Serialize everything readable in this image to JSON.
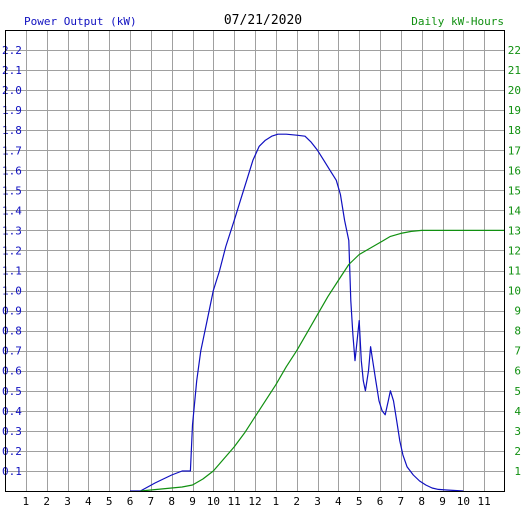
{
  "header": {
    "left_title": "Power Output (kW)",
    "date": "07/21/2020",
    "right_title": "Daily kW-Hours"
  },
  "colors": {
    "power": "#1010c0",
    "energy": "#109010",
    "grid": "#a0a0a0",
    "axis": "#000000",
    "date_text": "#000000"
  },
  "chart_data": {
    "type": "line",
    "x_tick_labels": [
      "1",
      "2",
      "3",
      "4",
      "5",
      "6",
      "7",
      "8",
      "9",
      "10",
      "11",
      "12",
      "1",
      "2",
      "3",
      "4",
      "5",
      "6",
      "7",
      "8",
      "9",
      "10",
      "11"
    ],
    "x_unit": "hour of day",
    "xlim": [
      0,
      24
    ],
    "left_axis": {
      "label": "Power Output (kW)",
      "ylim": [
        0,
        2.3
      ],
      "ticks": [
        "0.1",
        "0.2",
        "0.3",
        "0.4",
        "0.5",
        "0.6",
        "0.7",
        "0.8",
        "0.9",
        "1.0",
        "1.1",
        "1.2",
        "1.3",
        "1.4",
        "1.5",
        "1.6",
        "1.7",
        "1.8",
        "1.9",
        "2.0",
        "2.1",
        "2.2"
      ]
    },
    "right_axis": {
      "label": "Daily kW-Hours",
      "ylim": [
        0,
        23
      ],
      "ticks": [
        "1",
        "2",
        "3",
        "4",
        "5",
        "6",
        "7",
        "8",
        "9",
        "10",
        "11",
        "12",
        "13",
        "14",
        "15",
        "16",
        "17",
        "18",
        "19",
        "20",
        "21",
        "22"
      ]
    },
    "grid": true,
    "series": [
      {
        "name": "Power Output (kW)",
        "axis": "left",
        "color": "#1010c0",
        "points": [
          [
            6.0,
            0
          ],
          [
            6.5,
            0
          ],
          [
            6.85,
            0.02
          ],
          [
            7.2,
            0.04
          ],
          [
            7.6,
            0.06
          ],
          [
            8.0,
            0.08
          ],
          [
            8.5,
            0.1
          ],
          [
            8.9,
            0.1
          ],
          [
            9.0,
            0.33
          ],
          [
            9.2,
            0.55
          ],
          [
            9.4,
            0.7
          ],
          [
            9.7,
            0.85
          ],
          [
            10.0,
            1.0
          ],
          [
            10.3,
            1.1
          ],
          [
            10.6,
            1.22
          ],
          [
            11.0,
            1.35
          ],
          [
            11.3,
            1.45
          ],
          [
            11.6,
            1.55
          ],
          [
            11.9,
            1.65
          ],
          [
            12.2,
            1.72
          ],
          [
            12.5,
            1.75
          ],
          [
            12.8,
            1.77
          ],
          [
            13.1,
            1.78
          ],
          [
            13.5,
            1.78
          ],
          [
            14.0,
            1.775
          ],
          [
            14.4,
            1.77
          ],
          [
            14.7,
            1.74
          ],
          [
            15.0,
            1.7
          ],
          [
            15.3,
            1.65
          ],
          [
            15.6,
            1.6
          ],
          [
            15.9,
            1.55
          ],
          [
            16.1,
            1.48
          ],
          [
            16.3,
            1.35
          ],
          [
            16.5,
            1.25
          ],
          [
            16.6,
            0.95
          ],
          [
            16.7,
            0.78
          ],
          [
            16.8,
            0.65
          ],
          [
            16.9,
            0.75
          ],
          [
            17.0,
            0.85
          ],
          [
            17.1,
            0.65
          ],
          [
            17.2,
            0.55
          ],
          [
            17.3,
            0.5
          ],
          [
            17.45,
            0.6
          ],
          [
            17.55,
            0.72
          ],
          [
            17.65,
            0.65
          ],
          [
            17.8,
            0.55
          ],
          [
            17.95,
            0.45
          ],
          [
            18.1,
            0.4
          ],
          [
            18.25,
            0.38
          ],
          [
            18.4,
            0.45
          ],
          [
            18.5,
            0.5
          ],
          [
            18.65,
            0.45
          ],
          [
            18.8,
            0.35
          ],
          [
            18.95,
            0.25
          ],
          [
            19.1,
            0.18
          ],
          [
            19.3,
            0.12
          ],
          [
            19.6,
            0.08
          ],
          [
            19.9,
            0.05
          ],
          [
            20.2,
            0.03
          ],
          [
            20.5,
            0.015
          ],
          [
            20.8,
            0.008
          ],
          [
            21.2,
            0.005
          ],
          [
            21.7,
            0.002
          ],
          [
            22.0,
            0
          ]
        ]
      },
      {
        "name": "Daily kW-Hours",
        "axis": "right",
        "color": "#109010",
        "points": [
          [
            6.5,
            0
          ],
          [
            7.0,
            0.05
          ],
          [
            7.5,
            0.1
          ],
          [
            8.0,
            0.15
          ],
          [
            8.5,
            0.2
          ],
          [
            9.0,
            0.3
          ],
          [
            9.5,
            0.6
          ],
          [
            10.0,
            1.0
          ],
          [
            10.5,
            1.6
          ],
          [
            11.0,
            2.2
          ],
          [
            11.5,
            2.9
          ],
          [
            12.0,
            3.7
          ],
          [
            12.5,
            4.5
          ],
          [
            13.0,
            5.3
          ],
          [
            13.5,
            6.2
          ],
          [
            14.0,
            7.0
          ],
          [
            14.5,
            7.9
          ],
          [
            15.0,
            8.8
          ],
          [
            15.5,
            9.7
          ],
          [
            16.0,
            10.5
          ],
          [
            16.5,
            11.3
          ],
          [
            17.0,
            11.8
          ],
          [
            17.5,
            12.1
          ],
          [
            18.0,
            12.4
          ],
          [
            18.5,
            12.7
          ],
          [
            19.0,
            12.85
          ],
          [
            19.5,
            12.95
          ],
          [
            20.0,
            13.0
          ],
          [
            21.0,
            13.0
          ],
          [
            22.0,
            13.0
          ],
          [
            23.0,
            13.0
          ],
          [
            24.0,
            13.0
          ]
        ]
      }
    ]
  }
}
